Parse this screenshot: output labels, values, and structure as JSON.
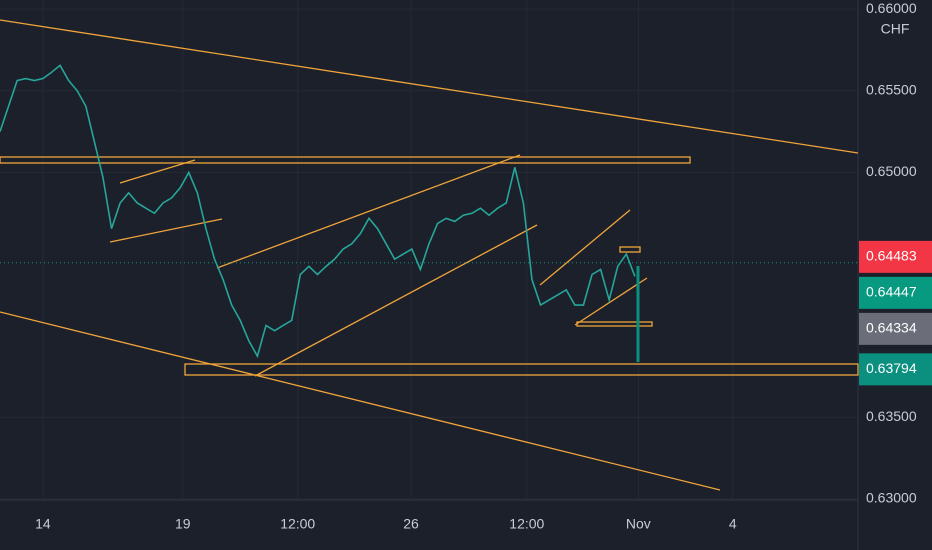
{
  "chart_data": {
    "type": "line",
    "currency": "CHF",
    "x": [
      0,
      1,
      2,
      3,
      4,
      5,
      6,
      7,
      8,
      9,
      10,
      11,
      12,
      13,
      14,
      15,
      16,
      17,
      18,
      19,
      20,
      21,
      22,
      23,
      24,
      25,
      26,
      27,
      28,
      29,
      30,
      31,
      32,
      33,
      34,
      35,
      36,
      37,
      38,
      39,
      40,
      41,
      42,
      43,
      44,
      45,
      46,
      47,
      48,
      49,
      50,
      51,
      52,
      53,
      54,
      55,
      56,
      57,
      58,
      59,
      60,
      61,
      62,
      63,
      64,
      65,
      66,
      67,
      68,
      69,
      70,
      71,
      72,
      73,
      74
    ],
    "series": [
      {
        "color": "#26a69a",
        "values": [
          0.6525,
          0.65406,
          0.65563,
          0.65575,
          0.65563,
          0.65575,
          0.65613,
          0.65656,
          0.65563,
          0.655,
          0.65406,
          0.65188,
          0.64969,
          0.64656,
          0.64813,
          0.64875,
          0.64813,
          0.64781,
          0.6475,
          0.64813,
          0.64844,
          0.64906,
          0.65,
          0.64875,
          0.64656,
          0.64469,
          0.64344,
          0.64188,
          0.64094,
          0.63969,
          0.63875,
          0.64063,
          0.64031,
          0.64063,
          0.64094,
          0.64375,
          0.64425,
          0.64375,
          0.64425,
          0.64469,
          0.64531,
          0.64563,
          0.64625,
          0.64719,
          0.64656,
          0.64563,
          0.64469,
          0.645,
          0.64531,
          0.64406,
          0.64563,
          0.64688,
          0.64719,
          0.647,
          0.64738,
          0.6475,
          0.64781,
          0.64738,
          0.64781,
          0.64813,
          0.65031,
          0.64813,
          0.64344,
          0.64188,
          0.64219,
          0.6425,
          0.64281,
          0.64188,
          0.64188,
          0.64375,
          0.64406,
          0.64219,
          0.64425,
          0.645,
          0.64363
        ]
      }
    ],
    "xlim": [
      0,
      100
    ],
    "xticks": [
      {
        "value": 5,
        "label": "14"
      },
      {
        "value": 21.3,
        "label": "19"
      },
      {
        "value": 34.7,
        "label": "12:00"
      },
      {
        "value": 47.9,
        "label": "26"
      },
      {
        "value": 61.4,
        "label": "12:00"
      },
      {
        "value": 74.4,
        "label": "Nov"
      },
      {
        "value": 85.4,
        "label": "4"
      }
    ],
    "ylim": [
      0.62994,
      0.66056
    ],
    "yticks": [
      {
        "value": 0.63,
        "label": "0.63000"
      },
      {
        "value": 0.635,
        "label": "0.63500"
      },
      {
        "value": 0.65,
        "label": "0.65000"
      },
      {
        "value": 0.655,
        "label": "0.65500"
      },
      {
        "value": 0.66,
        "label": "0.66000"
      }
    ],
    "price_labels": [
      {
        "value": 0.64483,
        "color": "#f23645"
      },
      {
        "value": 0.64447,
        "color": "#089981"
      },
      {
        "value": 0.64334,
        "color": "#6b6e78"
      },
      {
        "value": 0.63794,
        "color": "#0b8f7f"
      }
    ],
    "grid": true
  }
}
